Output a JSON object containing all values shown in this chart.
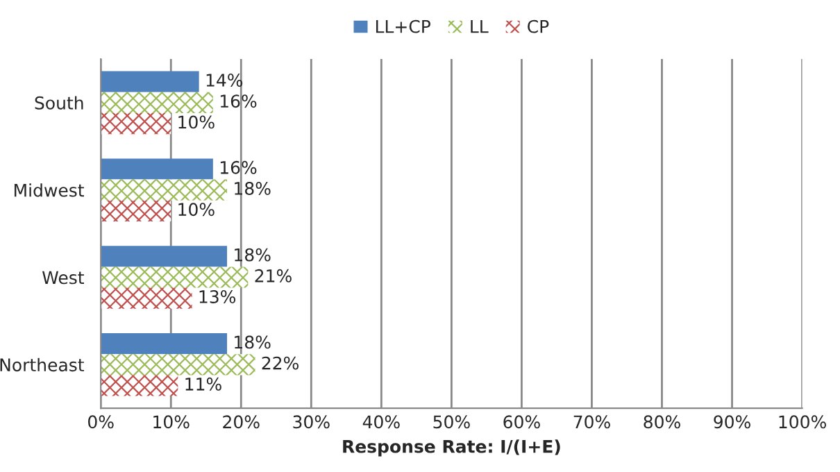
{
  "chart_data": {
    "type": "bar",
    "orientation": "horizontal",
    "xlabel": "Response Rate: I/(I+E)",
    "categories": [
      "South",
      "Midwest",
      "West",
      "Northeast"
    ],
    "series": [
      {
        "name": "LL+CP",
        "color": "#4f81bd",
        "values": [
          14,
          16,
          18,
          18
        ],
        "value_labels": [
          "14%",
          "16%",
          "18%",
          "18%"
        ]
      },
      {
        "name": "LL",
        "color": "#9bbb59",
        "values": [
          16,
          18,
          21,
          22
        ],
        "value_labels": [
          "16%",
          "18%",
          "21%",
          "22%"
        ]
      },
      {
        "name": "CP",
        "color": "#c0504d",
        "values": [
          10,
          10,
          13,
          11
        ],
        "value_labels": [
          "10%",
          "10%",
          "13%",
          "11%"
        ]
      }
    ],
    "xlim": [
      0,
      100
    ],
    "xticks": [
      {
        "value": 0,
        "label": "0%"
      },
      {
        "value": 10,
        "label": "10%"
      },
      {
        "value": 20,
        "label": "20%"
      },
      {
        "value": 30,
        "label": "30%"
      },
      {
        "value": 40,
        "label": "40%"
      },
      {
        "value": 50,
        "label": "50%"
      },
      {
        "value": 60,
        "label": "60%"
      },
      {
        "value": 70,
        "label": "70%"
      },
      {
        "value": 80,
        "label": "80%"
      },
      {
        "value": 90,
        "label": "90%"
      },
      {
        "value": 100,
        "label": "100%"
      }
    ],
    "grid": "x",
    "legend": "top"
  }
}
